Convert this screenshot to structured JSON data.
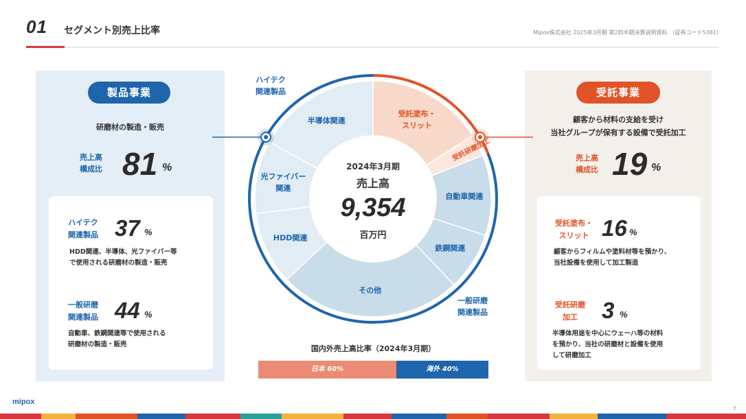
{
  "header": {
    "section_number": "01",
    "title": "セグメント別売上比率",
    "meta": "Mipox株式会社 2025年3月期 第2四半期決算説明資料　(証券コード5381)"
  },
  "left_panel": {
    "badge": "製品事業",
    "description": "研磨材の製造・販売",
    "share_label": [
      "売上高",
      "構成比"
    ],
    "share_value": "81",
    "share_unit": "%",
    "items": [
      {
        "label": [
          "ハイテク",
          "関連製品"
        ],
        "value": "37",
        "unit": "%",
        "description": [
          "HDD関連、半導体、光ファイバー等",
          "で使用される研磨材の製造・販売"
        ]
      },
      {
        "label": [
          "一般研磨",
          "関連製品"
        ],
        "value": "44",
        "unit": "%",
        "description": [
          "自動車、鉄鋼関連等で使用される",
          "研磨材の製造・販売"
        ]
      }
    ]
  },
  "right_panel": {
    "badge": "受託事業",
    "description": [
      "顧客から材料の支給を受け",
      "当社グループが保有する設備で受託加工"
    ],
    "share_label": [
      "売上高",
      "構成比"
    ],
    "share_value": "19",
    "share_unit": "%",
    "items": [
      {
        "label": [
          "受託塗布・",
          "スリット"
        ],
        "value": "16",
        "unit": "%",
        "description": [
          "顧客からフィルムや塗料材等を預かり、",
          "当社設備を使用して加工製造"
        ]
      },
      {
        "label": [
          "受託研磨",
          "加工"
        ],
        "value": "3",
        "unit": "%",
        "description": [
          "半導体用途を中心にウェーハ等の材料",
          "を預かり、当社の研磨材と設備を使用",
          "して研磨加工"
        ]
      }
    ]
  },
  "center": {
    "period": "2024年3月期",
    "label": "売上高",
    "value": "9,354",
    "unit": "百万円",
    "group_labels": {
      "hitech": [
        "ハイテク",
        "関連製品"
      ],
      "general": [
        "一般研磨",
        "関連製品"
      ]
    }
  },
  "chart_data": {
    "type": "pie",
    "variant": "donut",
    "slices": [
      {
        "label": "受託塗布・スリット",
        "lines": [
          "受託塗布・",
          "スリット"
        ],
        "value": 16,
        "group": "contract"
      },
      {
        "label": "受託研磨加工",
        "lines": [
          "受託研磨加工"
        ],
        "value": 3,
        "group": "contract"
      },
      {
        "label": "自動車関連",
        "lines": [
          "自動車関連"
        ],
        "value": 11,
        "group": "general"
      },
      {
        "label": "鉄鋼関連",
        "lines": [
          "鉄鋼関連"
        ],
        "value": 8,
        "group": "general"
      },
      {
        "label": "その他",
        "lines": [
          "その他"
        ],
        "value": 25,
        "group": "general"
      },
      {
        "label": "HDD関連",
        "lines": [
          "HDD関連"
        ],
        "value": 10,
        "group": "hitech"
      },
      {
        "label": "光ファイバー関連",
        "lines": [
          "光ファイバー",
          "関連"
        ],
        "value": 10,
        "group": "hitech"
      },
      {
        "label": "半導体関連",
        "lines": [
          "半導体関連"
        ],
        "value": 17,
        "group": "hitech"
      }
    ],
    "colors": {
      "hitech_fill": "#e2ecf5",
      "general_fill": "#c9dcea",
      "contract_fill": "#f8d9c9",
      "contract_small_fill": "#fbe7dd",
      "segment_line": "#1f65ac",
      "contract_line": "#e05326",
      "slice_text_blue": "#1f65ac",
      "slice_text_orange": "#e05326"
    }
  },
  "region_share": {
    "title": "国内外売上高比率（2024年3月期）",
    "segments": [
      {
        "label": "日本 60%",
        "value": 60,
        "color": "#ec8b74"
      },
      {
        "label": "海外 40%",
        "value": 40,
        "color": "#1f65ac"
      }
    ]
  },
  "footer": {
    "logo": "mipox",
    "page": "7"
  }
}
